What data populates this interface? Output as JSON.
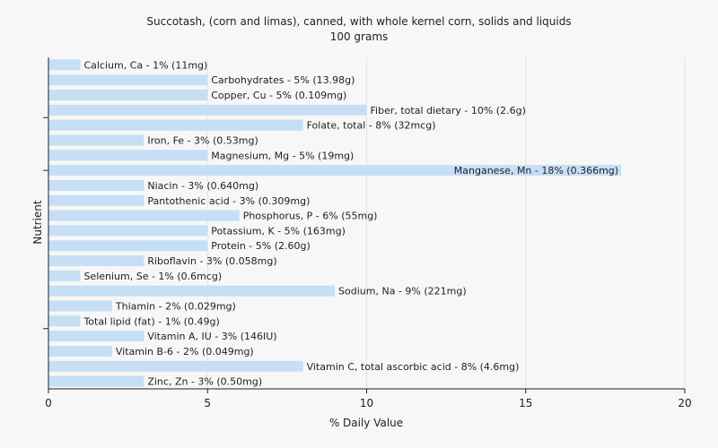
{
  "chart_data": {
    "type": "bar",
    "orientation": "horizontal",
    "title": "Succotash, (corn and limas), canned, with whole kernel corn, solids and liquids",
    "subtitle": "100 grams",
    "xlabel": "% Daily Value",
    "ylabel": "Nutrient",
    "xlim": [
      0,
      20
    ],
    "xticks": [
      "0",
      "5",
      "10",
      "15",
      "20"
    ],
    "grid": true,
    "bar_color": "#c6dff7",
    "categories": [
      "Calcium, Ca",
      "Carbohydrates",
      "Copper, Cu",
      "Fiber, total dietary",
      "Folate, total",
      "Iron, Fe",
      "Magnesium, Mg",
      "Manganese, Mn",
      "Niacin",
      "Pantothenic acid",
      "Phosphorus, P",
      "Potassium, K",
      "Protein",
      "Riboflavin",
      "Selenium, Se",
      "Sodium, Na",
      "Thiamin",
      "Total lipid (fat)",
      "Vitamin A, IU",
      "Vitamin B-6",
      "Vitamin C, total ascorbic acid",
      "Zinc, Zn"
    ],
    "values": [
      1,
      5,
      5,
      10,
      8,
      3,
      5,
      18,
      3,
      3,
      6,
      5,
      5,
      3,
      1,
      9,
      2,
      1,
      3,
      2,
      8,
      3
    ],
    "labels": [
      "Calcium, Ca - 1% (11mg)",
      "Carbohydrates - 5% (13.98g)",
      "Copper, Cu - 5% (0.109mg)",
      "Fiber, total dietary - 10% (2.6g)",
      "Folate, total - 8% (32mcg)",
      "Iron, Fe - 3% (0.53mg)",
      "Magnesium, Mg - 5% (19mg)",
      "Manganese, Mn - 18% (0.366mg)",
      "Niacin - 3% (0.640mg)",
      "Pantothenic acid - 3% (0.309mg)",
      "Phosphorus, P - 6% (55mg)",
      "Potassium, K - 5% (163mg)",
      "Protein - 5% (2.60g)",
      "Riboflavin - 3% (0.058mg)",
      "Selenium, Se - 1% (0.6mcg)",
      "Sodium, Na - 9% (221mg)",
      "Thiamin - 2% (0.029mg)",
      "Total lipid (fat) - 1% (0.49g)",
      "Vitamin A, IU - 3% (146IU)",
      "Vitamin B-6 - 2% (0.049mg)",
      "Vitamin C, total ascorbic acid - 8% (4.6mg)",
      "Zinc, Zn - 3% (0.50mg)"
    ]
  }
}
